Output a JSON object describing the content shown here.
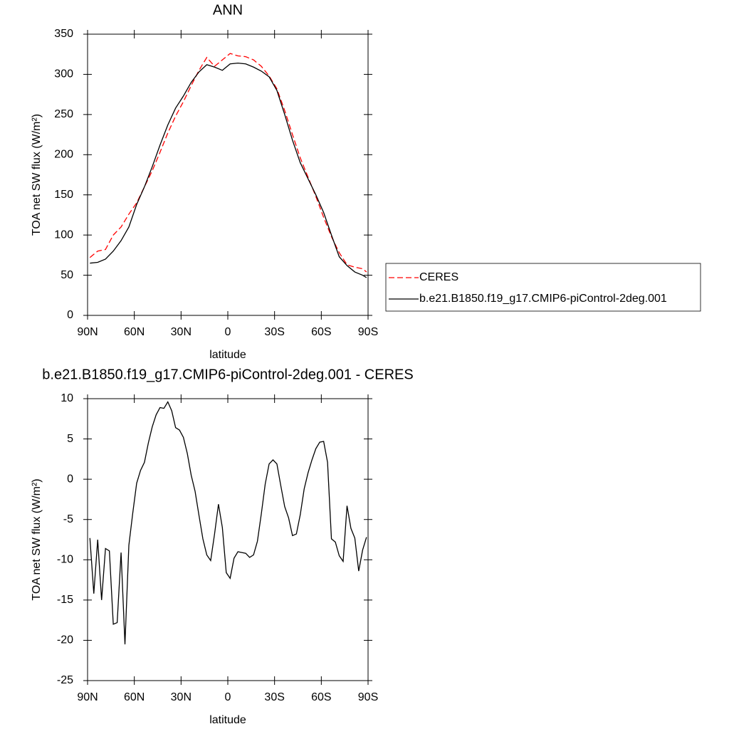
{
  "chart_data": [
    {
      "type": "line",
      "title": "ANN",
      "xlabel": "latitude",
      "ylabel": "TOA net SW flux (W/m²)",
      "x": [
        88.5,
        83.5,
        78.5,
        73.5,
        68.5,
        63.5,
        58.5,
        53.5,
        48.5,
        43.5,
        38.5,
        33.5,
        28.5,
        23.5,
        18.5,
        13.5,
        8.5,
        3.5,
        -1.5,
        -6.5,
        -11.5,
        -16.5,
        -21.5,
        -26.5,
        -31.5,
        -36.5,
        -41.5,
        -46.5,
        -51.5,
        -56.5,
        -61.5,
        -66.5,
        -71.5,
        -76.5,
        -81.5,
        -86.5,
        -89
      ],
      "series": [
        {
          "name": "CERES",
          "color": "#ff0000",
          "dashed": true,
          "values": [
            72,
            80,
            82,
            100,
            110,
            126,
            140,
            160,
            180,
            203,
            227,
            248,
            266,
            286,
            305,
            321,
            310,
            318,
            326,
            323,
            322,
            318,
            310,
            298,
            282,
            255,
            225,
            196,
            172,
            148,
            122,
            98,
            78,
            63,
            60,
            58,
            54
          ]
        },
        {
          "name": "b.e21.B1850.f19_g17.CMIP6-piControl-2deg.001",
          "color": "#000000",
          "dashed": false,
          "values": [
            65,
            66,
            70,
            80,
            93,
            110,
            138,
            160,
            185,
            212,
            237,
            258,
            273,
            290,
            303,
            312,
            309,
            305,
            313,
            314,
            313,
            309,
            304,
            297,
            280,
            250,
            218,
            190,
            170,
            150,
            128,
            100,
            73,
            62,
            54,
            50,
            47
          ]
        }
      ],
      "xlim": [
        90,
        -90
      ],
      "xticks": [
        {
          "value": 90,
          "label": "90N"
        },
        {
          "value": 60,
          "label": "60N"
        },
        {
          "value": 30,
          "label": "30N"
        },
        0,
        {
          "value": -30,
          "label": "30S"
        },
        {
          "value": -60,
          "label": "60S"
        },
        {
          "value": -90,
          "label": "90S"
        }
      ],
      "ylim": [
        0,
        350
      ],
      "yticks": [
        0,
        50,
        100,
        150,
        200,
        250,
        300,
        350
      ],
      "legend": "right"
    },
    {
      "type": "line",
      "title": "b.e21.B1850.f19_g17.CMIP6-piControl-2deg.001 - CERES",
      "xlabel": "latitude",
      "ylabel": "TOA net SW flux (W/m²)",
      "x": [
        88.5,
        86,
        83.5,
        81,
        78.5,
        76,
        73.5,
        71,
        68.5,
        66,
        63.5,
        61,
        58.5,
        56,
        53.5,
        51,
        48.5,
        46,
        43.5,
        41,
        38.5,
        36,
        33.5,
        31,
        28.5,
        26,
        23.5,
        21,
        18.5,
        16,
        13.5,
        11,
        8.5,
        6,
        3.5,
        1,
        -1.5,
        -4,
        -6.5,
        -9,
        -11.5,
        -14,
        -16.5,
        -19,
        -21.5,
        -24,
        -26.5,
        -29,
        -31.5,
        -34,
        -36.5,
        -39,
        -41.5,
        -44,
        -46.5,
        -49,
        -51.5,
        -54,
        -56.5,
        -59,
        -61.5,
        -64,
        -66.5,
        -69,
        -71.5,
        -74,
        -76.5,
        -79,
        -81.5,
        -84,
        -86.5,
        -89
      ],
      "values": [
        -7.3,
        -14.2,
        -7.5,
        -15,
        -8.6,
        -8.9,
        -18,
        -17.8,
        -9.1,
        -20.5,
        -8.2,
        -4.2,
        -0.5,
        1.1,
        2.1,
        4.5,
        6.5,
        8,
        8.9,
        8.8,
        9.6,
        8.5,
        6.4,
        6.1,
        5.2,
        3.2,
        0.5,
        -1.5,
        -4.5,
        -7.4,
        -9.4,
        -10.1,
        -6.8,
        -3.1,
        -6,
        -11.6,
        -12.3,
        -9.8,
        -9,
        -9.1,
        -9.2,
        -9.7,
        -9.4,
        -7.7,
        -4.3,
        -0.6,
        1.9,
        2.4,
        1.9,
        -0.8,
        -3.4,
        -4.8,
        -7,
        -6.8,
        -4.4,
        -1.2,
        0.8,
        2.4,
        3.8,
        4.6,
        4.7,
        2.1,
        -7.4,
        -7.8,
        -9.5,
        -10.2,
        -3.3,
        -6.1,
        -7.3,
        -11.4,
        -8.8,
        -7.2
      ],
      "color": "#000000",
      "xlim": [
        90,
        -90
      ],
      "xticks": [
        {
          "value": 90,
          "label": "90N"
        },
        {
          "value": 60,
          "label": "60N"
        },
        {
          "value": 30,
          "label": "30N"
        },
        0,
        {
          "value": -30,
          "label": "30S"
        },
        {
          "value": -60,
          "label": "60S"
        },
        {
          "value": -90,
          "label": "90S"
        }
      ],
      "ylim": [
        -25,
        10
      ],
      "yticks": [
        -25,
        -20,
        -15,
        -10,
        -5,
        0,
        5,
        10
      ]
    }
  ]
}
